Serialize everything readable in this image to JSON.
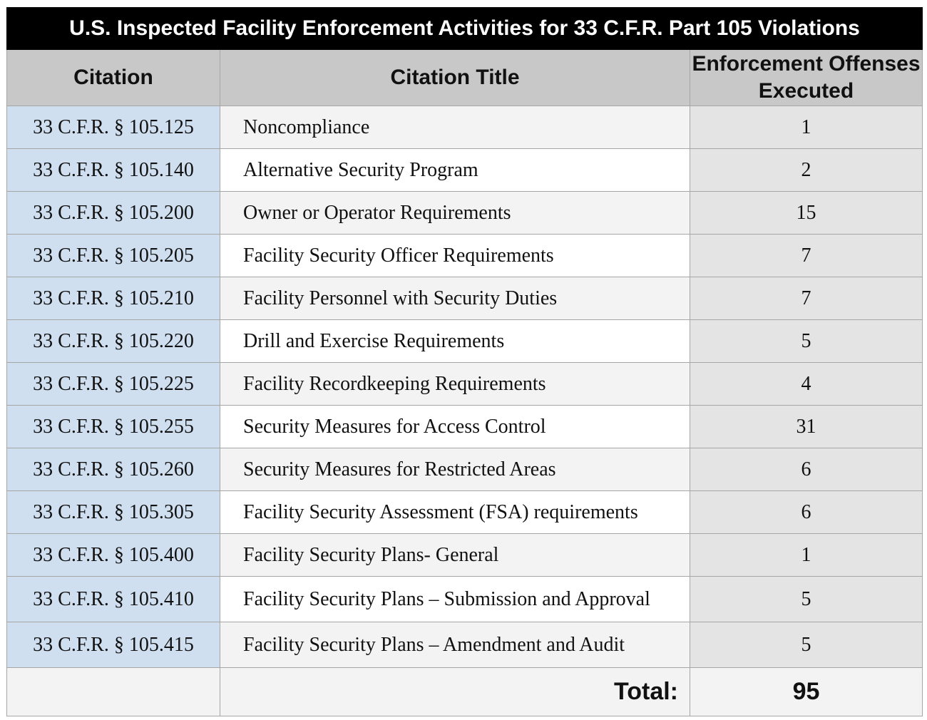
{
  "title": "U.S. Inspected Facility Enforcement Activities for 33 C.F.R. Part 105 Violations",
  "columns": [
    "Citation",
    "Citation Title",
    "Enforcement Offenses Executed"
  ],
  "rows": [
    {
      "citation": "33 C.F.R. § 105.125",
      "title": "Noncompliance",
      "count": "1"
    },
    {
      "citation": "33 C.F.R. § 105.140",
      "title": "Alternative Security Program",
      "count": "2"
    },
    {
      "citation": "33 C.F.R. § 105.200",
      "title": "Owner or Operator Requirements",
      "count": "15"
    },
    {
      "citation": "33 C.F.R. § 105.205",
      "title": "Facility Security Officer Requirements",
      "count": "7"
    },
    {
      "citation": "33 C.F.R. § 105.210",
      "title": "Facility Personnel with Security Duties",
      "count": "7"
    },
    {
      "citation": "33 C.F.R. § 105.220",
      "title": "Drill and Exercise Requirements",
      "count": "5"
    },
    {
      "citation": "33 C.F.R. § 105.225",
      "title": "Facility Recordkeeping Requirements",
      "count": "4"
    },
    {
      "citation": "33 C.F.R. § 105.255",
      "title": "Security Measures for Access Control",
      "count": "31"
    },
    {
      "citation": "33 C.F.R. § 105.260",
      "title": "Security Measures for Restricted Areas",
      "count": "6"
    },
    {
      "citation": "33 C.F.R. § 105.305",
      "title": "Facility Security Assessment (FSA) requirements",
      "count": "6"
    },
    {
      "citation": "33 C.F.R. § 105.400",
      "title": "Facility Security Plans- General",
      "count": "1"
    },
    {
      "citation": "33 C.F.R. § 105.410",
      "title": "Facility Security Plans – Submission and Approval",
      "count": "5"
    },
    {
      "citation": "33 C.F.R. § 105.415",
      "title": "Facility Security Plans – Amendment and Audit",
      "count": "5"
    }
  ],
  "total": {
    "label": "Total:",
    "value": "95"
  },
  "colors": {
    "title_bg": "#000000",
    "header_bg": "#c8c8c8",
    "citation_bg": "#cfdff0",
    "count_bg": "#e4e4e4"
  }
}
